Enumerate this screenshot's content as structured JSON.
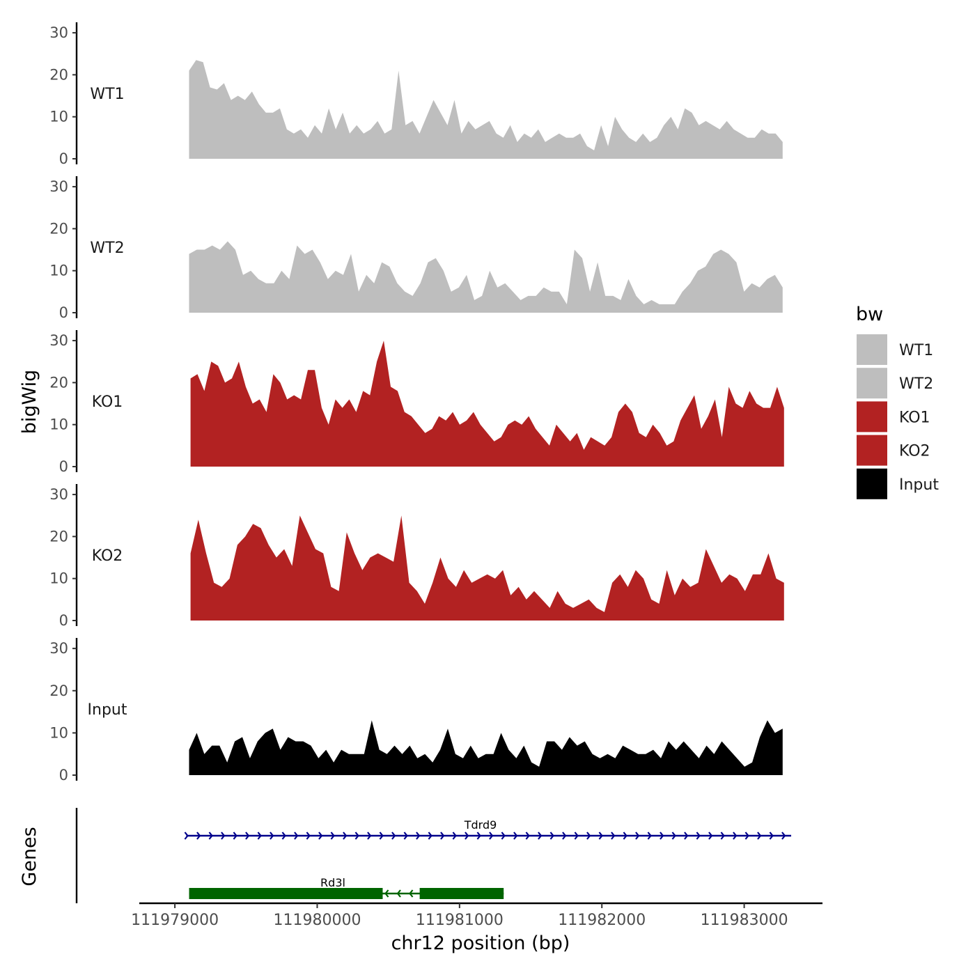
{
  "chart_data": {
    "type": "area",
    "ylabel": "bigWig",
    "xlabel": "chr12 position (bp)",
    "ylim": [
      0,
      30
    ],
    "yticks": [
      0,
      10,
      20,
      30
    ],
    "xlim": [
      111978750,
      111983550
    ],
    "xticks": [
      111979000,
      111980000,
      111981000,
      111982000,
      111983000
    ],
    "xtick_labels": [
      "111979000",
      "111980000",
      "111981000",
      "111982000",
      "111983000"
    ],
    "legend": {
      "title": "bw",
      "position": "right",
      "entries": [
        {
          "label": "WT1",
          "color": "#bebebe"
        },
        {
          "label": "WT2",
          "color": "#bebebe"
        },
        {
          "label": "KO1",
          "color": "#b22222"
        },
        {
          "label": "KO2",
          "color": "#b22222"
        },
        {
          "label": "Input",
          "color": "#000000"
        }
      ]
    },
    "series": [
      {
        "name": "WT1",
        "color": "#bebebe",
        "x_start": 111979100,
        "x_end": 111983270,
        "values": [
          21,
          23.5,
          23,
          17,
          16.5,
          18,
          14,
          15,
          14,
          16,
          13,
          11,
          11,
          12,
          7,
          6,
          7,
          5,
          8,
          6,
          12,
          7,
          11,
          6,
          8,
          6,
          7,
          9,
          6,
          7,
          21,
          8,
          9,
          6,
          10,
          14,
          11,
          8,
          14,
          6,
          9,
          7,
          8,
          9,
          6,
          5,
          8,
          4,
          6,
          5,
          7,
          4,
          5,
          6,
          5,
          5,
          6,
          3,
          2,
          8,
          3,
          10,
          7,
          5,
          4,
          6,
          4,
          5,
          8,
          10,
          7,
          12,
          11,
          8,
          9,
          8,
          7,
          9,
          7,
          6,
          5,
          5,
          7,
          6,
          6,
          4
        ]
      },
      {
        "name": "WT2",
        "color": "#bebebe",
        "x_start": 111979100,
        "x_end": 111983270,
        "values": [
          14,
          15,
          15,
          16,
          15,
          17,
          15,
          9,
          10,
          8,
          7,
          7,
          10,
          8,
          16,
          14,
          15,
          12,
          8,
          10,
          9,
          14,
          5,
          9,
          7,
          12,
          11,
          7,
          5,
          4,
          7,
          12,
          13,
          10,
          5,
          6,
          9,
          3,
          4,
          10,
          6,
          7,
          5,
          3,
          4,
          4,
          6,
          5,
          5,
          2,
          15,
          13,
          5,
          12,
          4,
          4,
          3,
          8,
          4,
          2,
          3,
          2,
          2,
          2,
          5,
          7,
          10,
          11,
          14,
          15,
          14,
          12,
          5,
          7,
          6,
          8,
          9,
          6
        ]
      },
      {
        "name": "KO1",
        "color": "#b22222",
        "x_start": 111979110,
        "x_end": 111983280,
        "values": [
          21,
          22,
          18,
          25,
          24,
          20,
          21,
          25,
          19,
          15,
          16,
          13,
          22,
          20,
          16,
          17,
          16,
          23,
          23,
          14,
          10,
          16,
          14,
          16,
          13,
          18,
          17,
          25,
          30,
          19,
          18,
          13,
          12,
          10,
          8,
          9,
          12,
          11,
          13,
          10,
          11,
          13,
          10,
          8,
          6,
          7,
          10,
          11,
          10,
          12,
          9,
          7,
          5,
          10,
          8,
          6,
          8,
          4,
          7,
          6,
          5,
          7,
          13,
          15,
          13,
          8,
          7,
          10,
          8,
          5,
          6,
          11,
          14,
          17,
          9,
          12,
          16,
          7,
          19,
          15,
          14,
          18,
          15,
          14,
          14,
          19,
          14
        ]
      },
      {
        "name": "KO2",
        "color": "#b22222",
        "x_start": 111979110,
        "x_end": 111983280,
        "values": [
          16,
          24,
          16,
          9,
          8,
          10,
          18,
          20,
          23,
          22,
          18,
          15,
          17,
          13,
          25,
          21,
          17,
          16,
          8,
          7,
          21,
          16,
          12,
          15,
          16,
          15,
          14,
          25,
          9,
          7,
          4,
          9,
          15,
          10,
          8,
          12,
          9,
          10,
          11,
          10,
          12,
          6,
          8,
          5,
          7,
          5,
          3,
          7,
          4,
          3,
          4,
          5,
          3,
          2,
          9,
          11,
          8,
          12,
          10,
          5,
          4,
          12,
          6,
          10,
          8,
          9,
          17,
          13,
          9,
          11,
          10,
          7,
          11,
          11,
          16,
          10,
          9
        ]
      },
      {
        "name": "Input",
        "color": "#000000",
        "x_start": 111979100,
        "x_end": 111983270,
        "values": [
          6,
          10,
          5,
          7,
          7,
          3,
          8,
          9,
          4,
          8,
          10,
          11,
          6,
          9,
          8,
          8,
          7,
          4,
          6,
          3,
          6,
          5,
          5,
          5,
          13,
          6,
          5,
          7,
          5,
          7,
          4,
          5,
          3,
          6,
          11,
          5,
          4,
          7,
          4,
          5,
          5,
          10,
          6,
          4,
          7,
          3,
          2,
          8,
          8,
          6,
          9,
          7,
          8,
          5,
          4,
          5,
          4,
          7,
          6,
          5,
          5,
          6,
          4,
          8,
          6,
          8,
          6,
          4,
          7,
          5,
          8,
          6,
          4,
          2,
          3,
          9,
          13,
          10,
          11
        ]
      }
    ],
    "track_labels": [
      "WT1",
      "WT2",
      "KO1",
      "KO2",
      "Input"
    ],
    "genes_label": "Genes",
    "genes": [
      {
        "name": "Tdrd9",
        "color": "#00008b",
        "strand": "+",
        "start": 111979080,
        "end": 111983330,
        "exons": []
      },
      {
        "name": "Rd3l",
        "color": "#006400",
        "strand": "-",
        "start": 111979100,
        "end": 111981310,
        "exons": [
          [
            111979100,
            111980460
          ],
          [
            111980720,
            111981310
          ]
        ]
      }
    ]
  }
}
